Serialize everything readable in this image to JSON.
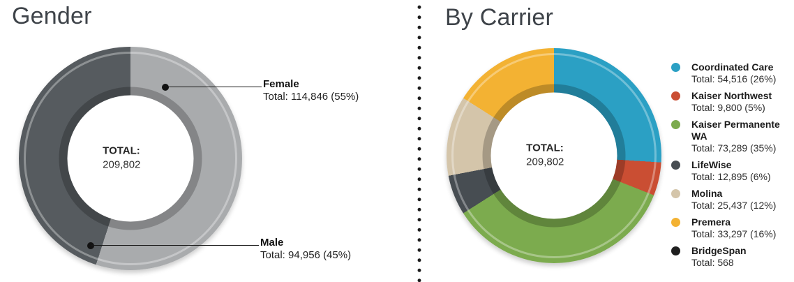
{
  "page": {
    "background": "#ffffff"
  },
  "chart_data": [
    {
      "type": "pie",
      "subtype": "donut",
      "title": "Gender",
      "center_label": "TOTAL:",
      "center_value": "209,802",
      "total": 209802,
      "legend_position": "callouts-right",
      "slices": [
        {
          "name": "Female",
          "value": 114846,
          "pct": 55,
          "color": "#a9abad",
          "detail": "Total: 114,846 (55%)"
        },
        {
          "name": "Male",
          "value": 94956,
          "pct": 45,
          "color": "#565b5f",
          "detail": "Total: 94,956 (45%)"
        }
      ]
    },
    {
      "type": "pie",
      "subtype": "donut",
      "title": "By Carrier",
      "center_label": "TOTAL:",
      "center_value": "209,802",
      "total": 209802,
      "legend_position": "right",
      "slices": [
        {
          "name": "Coordinated Care",
          "value": 54516,
          "pct": 26,
          "color": "#2ba0c4",
          "detail": "Total: 54,516 (26%)"
        },
        {
          "name": "Kaiser Northwest",
          "value": 9800,
          "pct": 5,
          "color": "#ca4e33",
          "detail": "Total: 9,800 (5%)"
        },
        {
          "name": "Kaiser Permanente WA",
          "value": 73289,
          "pct": 35,
          "color": "#7cab4e",
          "detail": "Total: 73,289 (35%)"
        },
        {
          "name": "LifeWise",
          "value": 12895,
          "pct": 6,
          "color": "#474d52",
          "detail": "Total: 12,895 (6%)"
        },
        {
          "name": "Molina",
          "value": 25437,
          "pct": 12,
          "color": "#d4c5aa",
          "detail": "Total: 25,437 (12%)"
        },
        {
          "name": "Premera",
          "value": 33297,
          "pct": 16,
          "color": "#f3b233",
          "detail": "Total: 33,297 (16%)"
        },
        {
          "name": "BridgeSpan",
          "value": 568,
          "pct": null,
          "color": "#1f1f1f",
          "detail": "Total: 568"
        }
      ]
    }
  ]
}
